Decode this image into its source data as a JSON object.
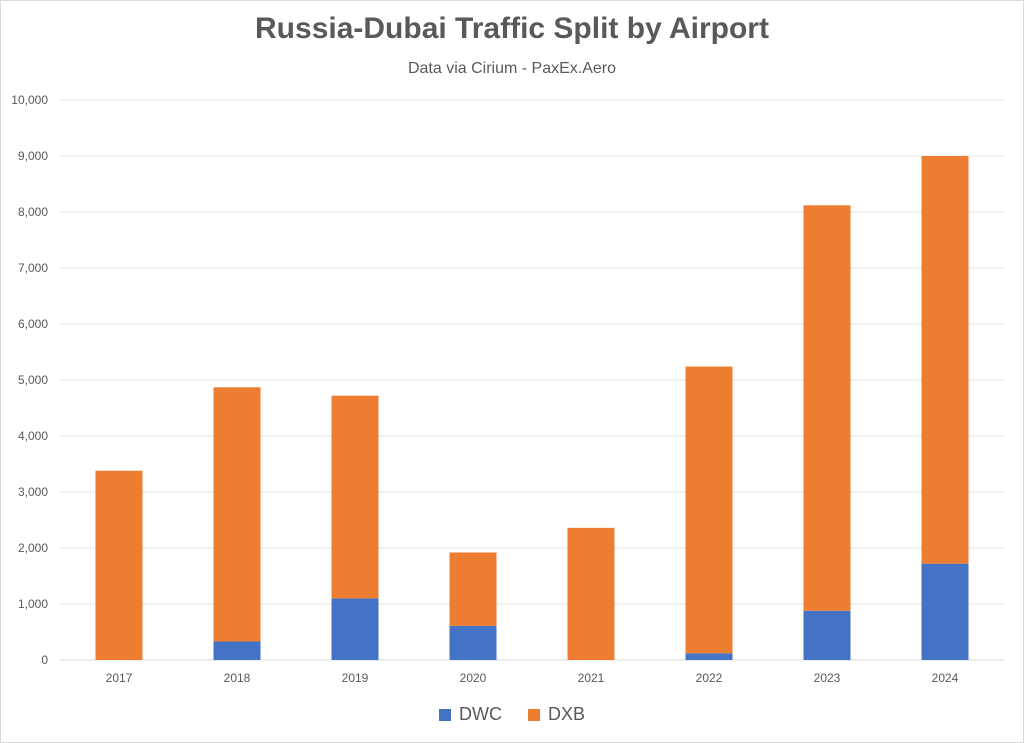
{
  "chart_data": {
    "type": "bar",
    "stacked": true,
    "title": "Russia-Dubai Traffic Split by Airport",
    "subtitle": "Data via Cirium - PaxEx.Aero",
    "categories": [
      "2017",
      "2018",
      "2019",
      "2020",
      "2021",
      "2022",
      "2023",
      "2024"
    ],
    "series": [
      {
        "name": "DWC",
        "color": "#4472c4",
        "values": [
          0,
          330,
          1100,
          610,
          0,
          120,
          880,
          1720
        ]
      },
      {
        "name": "DXB",
        "color": "#ed7d31",
        "values": [
          3380,
          4540,
          3620,
          1310,
          2360,
          5120,
          7240,
          7280
        ]
      }
    ],
    "ylim": [
      0,
      10000
    ],
    "yticks": [
      "0",
      "1,000",
      "2,000",
      "3,000",
      "4,000",
      "5,000",
      "6,000",
      "7,000",
      "8,000",
      "9,000",
      "10,000"
    ],
    "grid": true,
    "legend_position": "bottom"
  }
}
